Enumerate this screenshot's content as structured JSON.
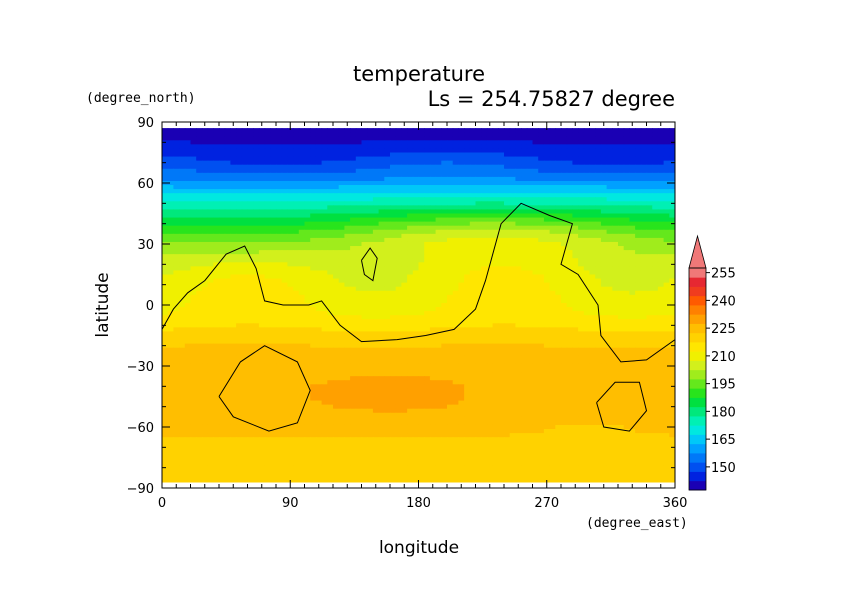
{
  "chart_data": {
    "type": "heatmap",
    "title": "temperature",
    "subtitle": "Ls = 254.75827 degree",
    "xlabel": "longitude",
    "ylabel": "latitude",
    "xunit": "(degree_east)",
    "yunit": "(degree_north)",
    "xlim": [
      0,
      360
    ],
    "ylim": [
      -90,
      90
    ],
    "xticks": [
      0,
      90,
      180,
      270,
      360
    ],
    "xtick_labels": [
      "0",
      "90",
      "180",
      "270",
      "360"
    ],
    "yticks": [
      90,
      60,
      30,
      0,
      -30,
      -60,
      -90
    ],
    "ytick_labels": [
      "90",
      "60",
      "30",
      "0",
      "−30",
      "−60",
      "−90"
    ],
    "data_lat_range": [
      -87,
      87
    ],
    "colorbar": {
      "levels": [
        140,
        145,
        150,
        155,
        160,
        165,
        170,
        175,
        180,
        185,
        190,
        195,
        200,
        205,
        210,
        215,
        220,
        225,
        230,
        235,
        240,
        245,
        250,
        255,
        260
      ],
      "colors": [
        "#1a00b4",
        "#0022e0",
        "#0050f0",
        "#0078f8",
        "#00a0ff",
        "#00c8f8",
        "#00e8e0",
        "#00f0b4",
        "#00e87c",
        "#00e040",
        "#28e41c",
        "#64e81c",
        "#a0ec1c",
        "#d2f01c",
        "#f0f000",
        "#ffe600",
        "#ffd200",
        "#ffbe00",
        "#ffa000",
        "#ff8000",
        "#ff5a00",
        "#f03c1e",
        "#e62832",
        "#f07878"
      ],
      "tick_values": [
        150,
        165,
        180,
        195,
        210,
        225,
        240,
        255
      ],
      "tick_labels": [
        "150",
        "165",
        "180",
        "195",
        "210",
        "225",
        "240",
        "255"
      ]
    },
    "latitude_profile": {
      "lat": [
        87,
        80,
        75,
        70,
        65,
        60,
        55,
        50,
        45,
        40,
        35,
        30,
        25,
        20,
        15,
        10,
        5,
        0,
        -5,
        -10,
        -15,
        -20,
        -25,
        -30,
        -35,
        -40,
        -45,
        -50,
        -55,
        -60,
        -65,
        -70,
        -75,
        -80,
        -87
      ],
      "temperature": [
        143,
        145,
        148,
        152,
        156,
        162,
        170,
        178,
        186,
        194,
        201,
        206,
        208,
        210,
        212,
        213,
        214,
        215,
        216,
        219,
        222,
        225,
        226,
        227,
        228,
        229,
        229,
        229,
        228,
        226,
        225,
        224,
        224,
        224,
        224
      ]
    },
    "contour_level": 210
  }
}
